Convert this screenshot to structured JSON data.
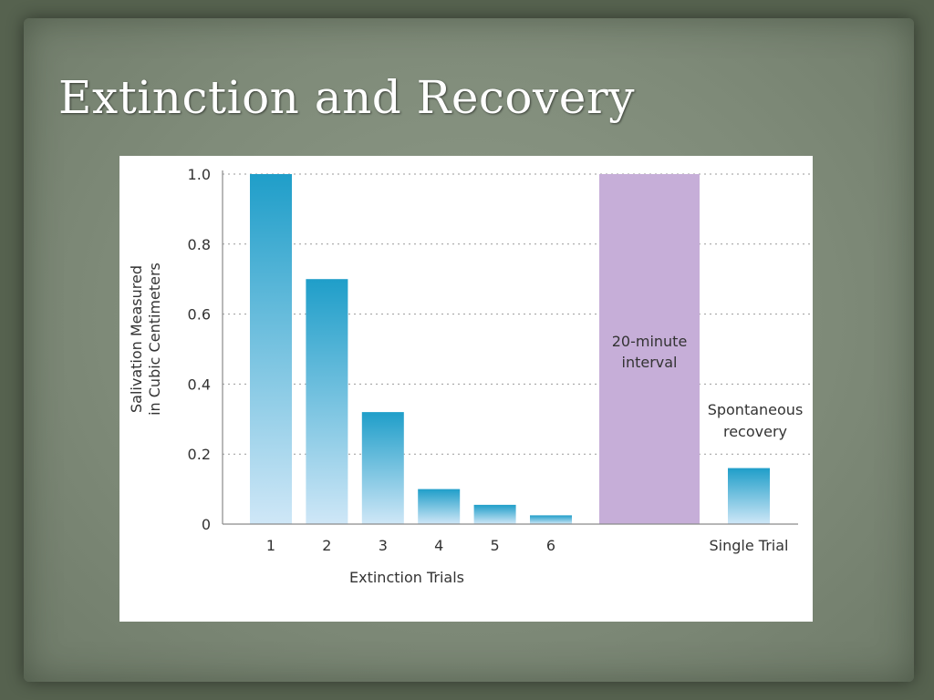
{
  "slide": {
    "title": "Extinction and Recovery"
  },
  "chart_data": {
    "type": "bar",
    "title": "",
    "ylabel": [
      "Salivation Measured",
      "in Cubic Centimeters"
    ],
    "xlabel": "Extinction Trials",
    "ylim": [
      0,
      1.0
    ],
    "yticks": [
      "0",
      "0.2",
      "0.4",
      "0.6",
      "0.8",
      "1.0"
    ],
    "grid": "horizontal-dotted",
    "categories": [
      "1",
      "2",
      "3",
      "4",
      "5",
      "6"
    ],
    "values": [
      1.0,
      0.7,
      0.32,
      0.1,
      0.055,
      0.025
    ],
    "interval": {
      "label": [
        "20-minute",
        "interval"
      ],
      "value": 1.0
    },
    "recovery": {
      "category": "Single Trial",
      "value": 0.16,
      "label": [
        "Spontaneous",
        "recovery"
      ]
    },
    "colors": {
      "bar_top": "#1f9ec9",
      "bar_bottom": "#cfe7f7",
      "interval": "#c6aed8",
      "grid": "#9a9a9a",
      "axis": "#8a8a8a"
    }
  }
}
